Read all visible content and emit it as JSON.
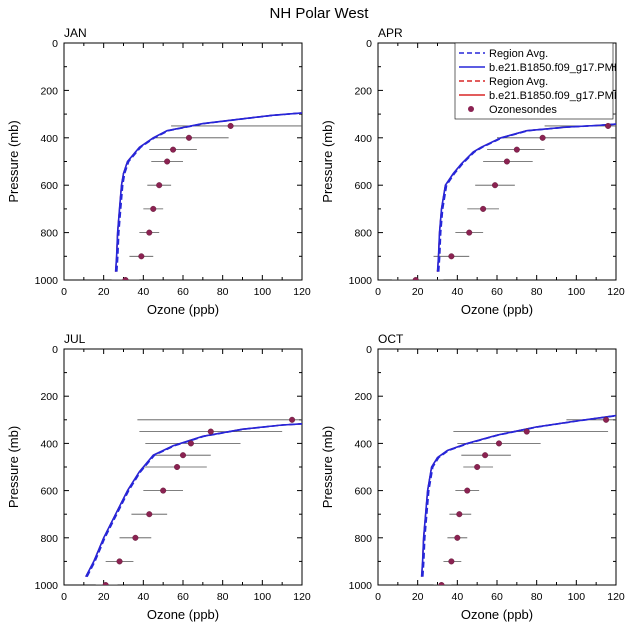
{
  "figure": {
    "title": "NH Polar West"
  },
  "legend": {
    "entries": [
      {
        "label": "Region Avg.",
        "color": "#2626d9",
        "style": "dashed"
      },
      {
        "label": "b.e21.B1850.f09_g17.PMI",
        "color": "#2626d9",
        "style": "solid"
      },
      {
        "label": "Region Avg.",
        "color": "#d92626",
        "style": "dashed"
      },
      {
        "label": "b.e21.B1850.f09_g17.PMI",
        "color": "#d92626",
        "style": "solid"
      },
      {
        "label": "Ozonesondes",
        "color": "#8b2252",
        "style": "marker"
      }
    ]
  },
  "chart_data": [
    {
      "type": "line",
      "label": "JAN",
      "xlabel": "Ozone (ppb)",
      "ylabel": "Pressure (mb)",
      "xlim": [
        0,
        120
      ],
      "ylim": [
        1000,
        0
      ],
      "xticks": [
        0,
        20,
        40,
        60,
        80,
        100,
        120
      ],
      "yticks": [
        0,
        200,
        400,
        600,
        800,
        1000
      ],
      "model": [
        [
          26,
          965
        ],
        [
          26.5,
          900
        ],
        [
          27,
          800
        ],
        [
          28,
          700
        ],
        [
          29,
          600
        ],
        [
          30,
          550
        ],
        [
          32,
          500
        ],
        [
          38,
          440
        ],
        [
          45,
          400
        ],
        [
          52,
          370
        ],
        [
          70,
          340
        ],
        [
          90,
          320
        ],
        [
          105,
          305
        ],
        [
          120,
          295
        ]
      ],
      "sondes": [
        {
          "p": 350,
          "mean": 84,
          "lo": 54,
          "hi": 120
        },
        {
          "p": 400,
          "mean": 63,
          "lo": 46,
          "hi": 83
        },
        {
          "p": 450,
          "mean": 55,
          "lo": 43,
          "hi": 67
        },
        {
          "p": 500,
          "mean": 52,
          "lo": 44,
          "hi": 60
        },
        {
          "p": 600,
          "mean": 48,
          "lo": 42,
          "hi": 54
        },
        {
          "p": 700,
          "mean": 45,
          "lo": 40,
          "hi": 50
        },
        {
          "p": 800,
          "mean": 43,
          "lo": 38,
          "hi": 48
        },
        {
          "p": 900,
          "mean": 39,
          "lo": 33,
          "hi": 45
        },
        {
          "p": 1000,
          "mean": 31,
          "lo": 24,
          "hi": 38
        }
      ]
    },
    {
      "type": "line",
      "label": "APR",
      "xlabel": "Ozone (ppb)",
      "ylabel": "Pressure (mb)",
      "xlim": [
        0,
        120
      ],
      "ylim": [
        1000,
        0
      ],
      "xticks": [
        0,
        20,
        40,
        60,
        80,
        100,
        120
      ],
      "yticks": [
        0,
        200,
        400,
        600,
        800,
        1000
      ],
      "model": [
        [
          30,
          965
        ],
        [
          30.5,
          900
        ],
        [
          31,
          800
        ],
        [
          32,
          700
        ],
        [
          34,
          600
        ],
        [
          38,
          550
        ],
        [
          42,
          510
        ],
        [
          48,
          460
        ],
        [
          52,
          440
        ],
        [
          62,
          400
        ],
        [
          75,
          370
        ],
        [
          95,
          355
        ],
        [
          110,
          348
        ],
        [
          120,
          342
        ]
      ],
      "sondes": [
        {
          "p": 300,
          "mean": 130,
          "lo": 100,
          "hi": 140
        },
        {
          "p": 350,
          "mean": 116,
          "lo": 84,
          "hi": 120
        },
        {
          "p": 400,
          "mean": 83,
          "lo": 60,
          "hi": 120
        },
        {
          "p": 450,
          "mean": 70,
          "lo": 55,
          "hi": 84
        },
        {
          "p": 500,
          "mean": 65,
          "lo": 53,
          "hi": 78
        },
        {
          "p": 600,
          "mean": 59,
          "lo": 49,
          "hi": 69
        },
        {
          "p": 700,
          "mean": 53,
          "lo": 45,
          "hi": 61
        },
        {
          "p": 800,
          "mean": 46,
          "lo": 39,
          "hi": 53
        },
        {
          "p": 900,
          "mean": 37,
          "lo": 28,
          "hi": 46
        },
        {
          "p": 1000,
          "mean": 19,
          "lo": 7,
          "hi": 33
        }
      ]
    },
    {
      "type": "line",
      "label": "JUL",
      "xlabel": "Ozone (ppb)",
      "ylabel": "Pressure (mb)",
      "xlim": [
        0,
        120
      ],
      "ylim": [
        1000,
        0
      ],
      "xticks": [
        0,
        20,
        40,
        60,
        80,
        100,
        120
      ],
      "yticks": [
        0,
        200,
        400,
        600,
        800,
        1000
      ],
      "model": [
        [
          11,
          965
        ],
        [
          15,
          900
        ],
        [
          20,
          800
        ],
        [
          26,
          700
        ],
        [
          32,
          600
        ],
        [
          38,
          520
        ],
        [
          45,
          450
        ],
        [
          55,
          410
        ],
        [
          70,
          370
        ],
        [
          90,
          340
        ],
        [
          110,
          322
        ],
        [
          120,
          317
        ]
      ],
      "sondes": [
        {
          "p": 300,
          "mean": 115,
          "lo": 37,
          "hi": 120
        },
        {
          "p": 350,
          "mean": 74,
          "lo": 38,
          "hi": 110
        },
        {
          "p": 400,
          "mean": 64,
          "lo": 41,
          "hi": 89
        },
        {
          "p": 450,
          "mean": 60,
          "lo": 45,
          "hi": 74
        },
        {
          "p": 500,
          "mean": 57,
          "lo": 40,
          "hi": 72
        },
        {
          "p": 600,
          "mean": 50,
          "lo": 40,
          "hi": 60
        },
        {
          "p": 700,
          "mean": 43,
          "lo": 34,
          "hi": 52
        },
        {
          "p": 800,
          "mean": 36,
          "lo": 28,
          "hi": 44
        },
        {
          "p": 900,
          "mean": 28,
          "lo": 21,
          "hi": 35
        },
        {
          "p": 1000,
          "mean": 21,
          "lo": 16,
          "hi": 27
        }
      ]
    },
    {
      "type": "line",
      "label": "OCT",
      "xlabel": "Ozone (ppb)",
      "ylabel": "Pressure (mb)",
      "xlim": [
        0,
        120
      ],
      "ylim": [
        1000,
        0
      ],
      "xticks": [
        0,
        20,
        40,
        60,
        80,
        100,
        120
      ],
      "yticks": [
        0,
        200,
        400,
        600,
        800,
        1000
      ],
      "model": [
        [
          22,
          965
        ],
        [
          22.5,
          900
        ],
        [
          23,
          800
        ],
        [
          24,
          700
        ],
        [
          25,
          600
        ],
        [
          27,
          500
        ],
        [
          30,
          460
        ],
        [
          35,
          430
        ],
        [
          45,
          400
        ],
        [
          60,
          365
        ],
        [
          80,
          330
        ],
        [
          100,
          305
        ],
        [
          120,
          282
        ]
      ],
      "sondes": [
        {
          "p": 300,
          "mean": 115,
          "lo": 95,
          "hi": 120
        },
        {
          "p": 350,
          "mean": 75,
          "lo": 38,
          "hi": 116
        },
        {
          "p": 400,
          "mean": 61,
          "lo": 40,
          "hi": 82
        },
        {
          "p": 450,
          "mean": 54,
          "lo": 42,
          "hi": 67
        },
        {
          "p": 500,
          "mean": 50,
          "lo": 43,
          "hi": 58
        },
        {
          "p": 600,
          "mean": 45,
          "lo": 39,
          "hi": 51
        },
        {
          "p": 700,
          "mean": 41,
          "lo": 36,
          "hi": 47
        },
        {
          "p": 800,
          "mean": 40,
          "lo": 35,
          "hi": 45
        },
        {
          "p": 900,
          "mean": 37,
          "lo": 33,
          "hi": 42
        },
        {
          "p": 1000,
          "mean": 32,
          "lo": 28,
          "hi": 37
        }
      ]
    }
  ]
}
